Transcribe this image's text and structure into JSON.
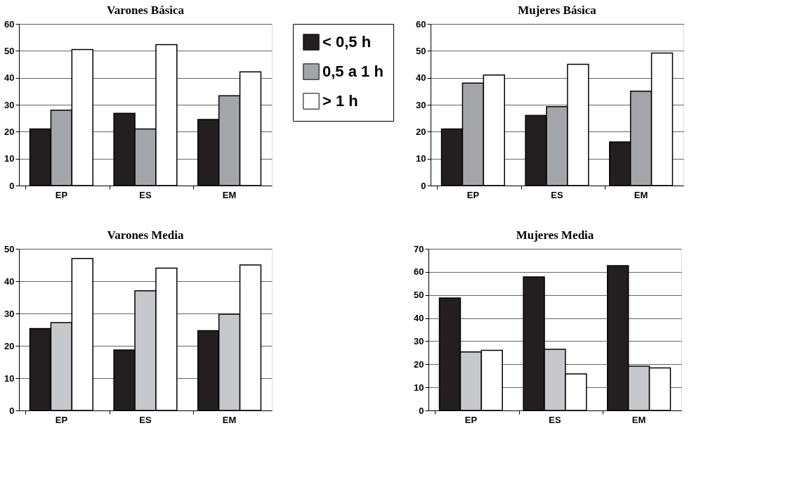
{
  "chart_data": [
    {
      "type": "bar",
      "title": "Varones Básica",
      "categories": [
        "EP",
        "ES",
        "EM"
      ],
      "ylim": [
        0,
        60
      ],
      "yticks": [
        0,
        10,
        20,
        30,
        40,
        50,
        60
      ],
      "grid": "y",
      "legend": "right",
      "series": [
        {
          "name": "< 0,5 h",
          "color": "#231f20",
          "values": [
            21,
            26.8,
            24.5
          ]
        },
        {
          "name": "0,5 a 1 h",
          "color": "#a3a5a8",
          "values": [
            28,
            21,
            33.3
          ]
        },
        {
          "name": "> 1 h",
          "color": "#ffffff",
          "values": [
            50.5,
            52.3,
            42.2
          ]
        }
      ]
    },
    {
      "type": "bar",
      "title": "Mujeres Básica",
      "categories": [
        "EP",
        "ES",
        "EM"
      ],
      "ylim": [
        0,
        60
      ],
      "yticks": [
        0,
        10,
        20,
        30,
        40,
        50,
        60
      ],
      "grid": "y",
      "series": [
        {
          "color": "#231f20",
          "values": [
            21,
            26,
            16.2
          ]
        },
        {
          "color": "#a3a5a8",
          "values": [
            38,
            29.3,
            35
          ]
        },
        {
          "color": "#ffffff",
          "values": [
            41,
            45,
            49.2
          ]
        }
      ]
    },
    {
      "type": "bar",
      "title": "Varones Media",
      "categories": [
        "EP",
        "ES",
        "EM"
      ],
      "ylim": [
        0,
        50
      ],
      "yticks": [
        0,
        10,
        20,
        30,
        40,
        50
      ],
      "grid": "y",
      "series": [
        {
          "color": "#231f20",
          "values": [
            25.3,
            18.7,
            24.7
          ]
        },
        {
          "color": "#c6c8cb",
          "values": [
            27.2,
            37,
            29.8
          ]
        },
        {
          "color": "#ffffff",
          "values": [
            47,
            44,
            45
          ]
        }
      ]
    },
    {
      "type": "bar",
      "title": "Mujeres Media",
      "categories": [
        "EP",
        "ES",
        "EM"
      ],
      "ylim": [
        0,
        70
      ],
      "yticks": [
        0,
        10,
        20,
        30,
        40,
        50,
        60,
        70
      ],
      "grid": "y",
      "series": [
        {
          "color": "#231f20",
          "values": [
            48.7,
            57.8,
            62.7
          ]
        },
        {
          "color": "#c6c8cb",
          "values": [
            25.3,
            26.5,
            19.2
          ]
        },
        {
          "color": "#ffffff",
          "values": [
            26,
            15.8,
            18.4
          ]
        }
      ]
    }
  ]
}
